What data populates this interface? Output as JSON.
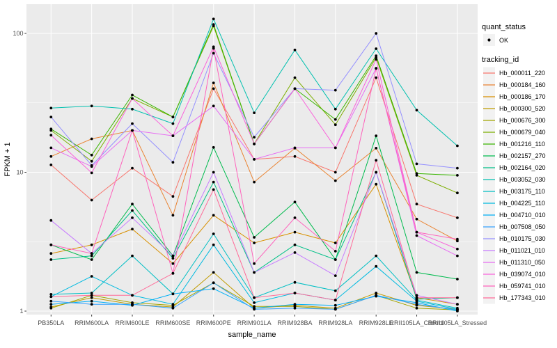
{
  "figure": {
    "background": "#FFFFFF",
    "panel_background": "#EBEBEB",
    "grid_color": "#FFFFFF",
    "tick_color": "#333333",
    "tick_label_color": "#4D4D4D",
    "point_color": "#000000"
  },
  "legend": {
    "quant_status_title": "quant_status",
    "quant_status_items": [
      {
        "label": "OK",
        "marker": "point"
      }
    ],
    "tracking_id_title": "tracking_id",
    "position": "right"
  },
  "chart_data": {
    "type": "line",
    "title": "",
    "xlabel": "sample_name",
    "ylabel": "FPKM + 1",
    "y_scale": "log10",
    "y_ticks": [
      1,
      10,
      100
    ],
    "y_minor_ticks": [
      3.162,
      31.62
    ],
    "ylim": [
      0.94,
      162
    ],
    "grid": true,
    "legend_position": "right",
    "categories": [
      "PB350LA",
      "RRIM600LA",
      "RRIM600LE",
      "RRIM600SE",
      "RRIM600PE",
      "RRIM901LA",
      "RRIM928BA",
      "RRIM928LA",
      "RRIM928LE",
      "RRII105LA_Control",
      "RRII105LA_Stressed"
    ],
    "series": [
      {
        "name": "Hb_000011_220",
        "color": "#F8766D",
        "values": [
          11.3,
          6.3,
          10.7,
          6.7,
          40,
          12.4,
          13,
          10,
          48,
          5.9,
          4.7
        ]
      },
      {
        "name": "Hb_000184_160",
        "color": "#EA8331",
        "values": [
          13,
          17.4,
          20,
          4.9,
          44,
          8.5,
          14.9,
          8.7,
          14.9,
          4.6,
          3.2
        ]
      },
      {
        "name": "Hb_000186_170",
        "color": "#D89000",
        "values": [
          2.6,
          3.0,
          3.9,
          2.2,
          4.9,
          3.1,
          3.7,
          3.1,
          8.2,
          1.25,
          1.12
        ]
      },
      {
        "name": "Hb_000300_520",
        "color": "#C09B00",
        "values": [
          1.07,
          1.25,
          1.12,
          1.07,
          1.9,
          1.05,
          1.1,
          1.05,
          1.35,
          1.1,
          1.03
        ]
      },
      {
        "name": "Hb_000676_300",
        "color": "#A3A500",
        "values": [
          1.05,
          1.3,
          1.15,
          1.1,
          1.6,
          1.08,
          1.08,
          1.03,
          1.3,
          1.05,
          1.02
        ]
      },
      {
        "name": "Hb_000679_040",
        "color": "#7CAE00",
        "values": [
          20,
          12,
          34,
          25,
          113,
          16,
          48,
          22,
          67,
          9.5,
          7.1
        ]
      },
      {
        "name": "Hb_001216_110",
        "color": "#39B600",
        "values": [
          20.5,
          13.3,
          36,
          25,
          116,
          16,
          40,
          24,
          69,
          9.8,
          9.5
        ]
      },
      {
        "name": "Hb_002157_270",
        "color": "#00BB4E",
        "values": [
          3.0,
          2.35,
          5.9,
          2.5,
          15.1,
          3.4,
          6.1,
          2.35,
          18.3,
          1.9,
          1.7
        ]
      },
      {
        "name": "Hb_002164_020",
        "color": "#00C087",
        "values": [
          2.35,
          2.5,
          5.3,
          2.4,
          8.5,
          1.9,
          3.0,
          2.35,
          10,
          1.22,
          1.25
        ]
      },
      {
        "name": "Hb_003052_030",
        "color": "#00C0AF",
        "values": [
          29,
          30,
          28.5,
          22.4,
          127,
          26.8,
          76,
          28.5,
          77.6,
          28,
          15.5
        ]
      },
      {
        "name": "Hb_003175_110",
        "color": "#00BFC4",
        "values": [
          1.32,
          1.35,
          2.5,
          1.33,
          3.6,
          1.25,
          1.61,
          1.4,
          2.5,
          1.2,
          1.05
        ]
      },
      {
        "name": "Hb_004225_110",
        "color": "#00BAE0",
        "values": [
          1.27,
          1.78,
          1.3,
          1.12,
          3.0,
          1.15,
          1.35,
          1.2,
          2.1,
          1.18,
          1.03
        ]
      },
      {
        "name": "Hb_004710_010",
        "color": "#00B0F6",
        "values": [
          1.12,
          1.18,
          1.1,
          1.33,
          1.45,
          1.05,
          1.12,
          1.1,
          1.28,
          1.15,
          1.0
        ]
      },
      {
        "name": "Hb_007508_050",
        "color": "#35A2FF",
        "values": [
          1.18,
          1.12,
          1.12,
          1.05,
          1.6,
          1.03,
          1.05,
          1.03,
          1.3,
          1.12,
          1.02
        ]
      },
      {
        "name": "Hb_010175_030",
        "color": "#9590FF",
        "values": [
          25,
          11.2,
          22.4,
          11.8,
          72,
          17.9,
          40,
          39,
          100,
          11.5,
          10.7
        ]
      },
      {
        "name": "Hb_011021_010",
        "color": "#C77CFF",
        "values": [
          4.5,
          2.6,
          4.7,
          2.5,
          10,
          1.9,
          2.64,
          1.8,
          10,
          1.3,
          1.12
        ]
      },
      {
        "name": "Hb_011310_050",
        "color": "#E76BF3",
        "values": [
          15,
          11,
          20,
          18.3,
          30,
          12.4,
          15,
          15,
          56,
          3.5,
          2.5
        ]
      },
      {
        "name": "Hb_039074_010",
        "color": "#FA62DB",
        "values": [
          18.5,
          9.9,
          34,
          18.3,
          80,
          16,
          40,
          15,
          65,
          3.7,
          2.8
        ]
      },
      {
        "name": "Hb_059741_010",
        "color": "#FF62BC",
        "values": [
          3.0,
          2.6,
          20,
          1.87,
          78,
          2.2,
          4.7,
          2.7,
          56,
          3.7,
          3.3
        ]
      },
      {
        "name": "Hb_177343_010",
        "color": "#FF6A98",
        "values": [
          1.27,
          1.3,
          1.3,
          1.87,
          7.5,
          1.25,
          1.35,
          1.2,
          12.2,
          1.25,
          1.25
        ]
      }
    ]
  }
}
